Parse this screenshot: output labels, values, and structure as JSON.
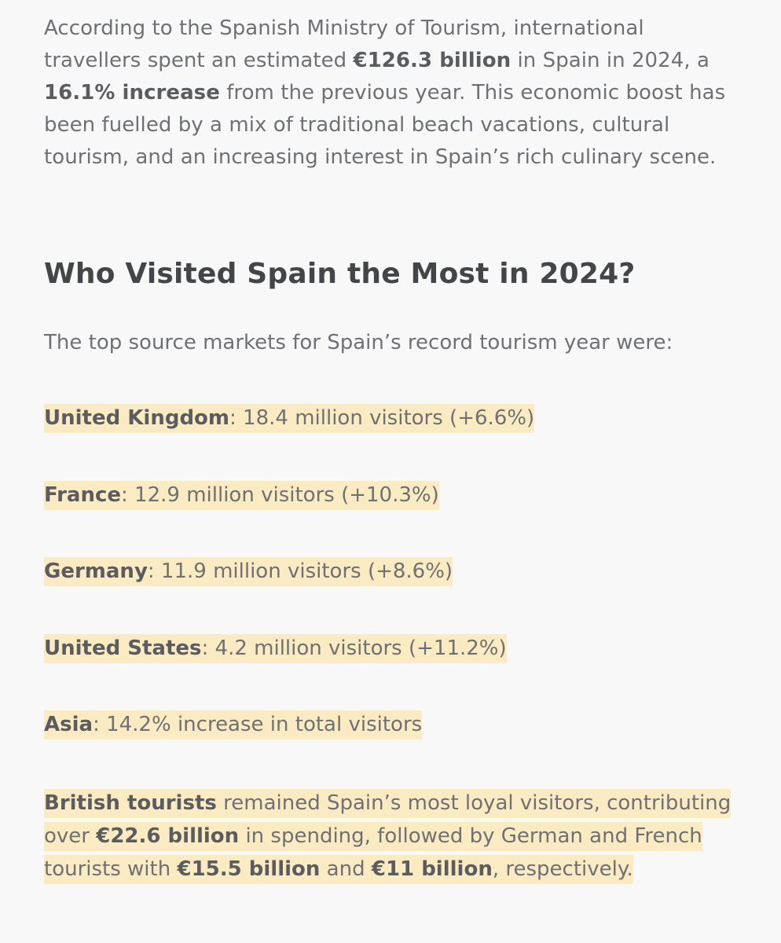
{
  "intro": {
    "t1": "According to the Spanish Ministry of Tourism, international travellers spent an estimated ",
    "b1": "€126.3 billion",
    "t2": " in Spain in 2024, a ",
    "b2": "16.1% increase",
    "t3": " from the previous year. This economic boost has been fuelled by a mix of traditional beach vacations, cultural tourism, and an increasing interest in Spain’s rich culinary scene."
  },
  "heading": "Who Visited Spain the Most in 2024?",
  "lead": "The top source markets for Spain’s record tourism year were:",
  "markets": [
    {
      "name": "United Kingdom",
      "detail": ": 18.4 million visitors (+6.6%)"
    },
    {
      "name": "France",
      "detail": ": 12.9 million visitors (+10.3%)"
    },
    {
      "name": "Germany",
      "detail": ": 11.9 million visitors (+8.6%)"
    },
    {
      "name": "United States",
      "detail": ": 4.2 million visitors (+11.2%)"
    },
    {
      "name": "Asia",
      "detail": ": 14.2% increase in total visitors"
    }
  ],
  "closing": {
    "b1": "British tourists",
    "t1": " remained Spain’s most loyal visitors, contributing over ",
    "b2": "€22.6 billion",
    "t2": " in spending, followed by German and French tourists with ",
    "b3": "€15.5 billion",
    "t3": " and ",
    "b4": "€11 billion",
    "t4": ", respectively."
  },
  "colors": {
    "highlight": "#fbebc2",
    "text": "#6f7073",
    "heading": "#434548",
    "background": "#f8f8f8"
  }
}
